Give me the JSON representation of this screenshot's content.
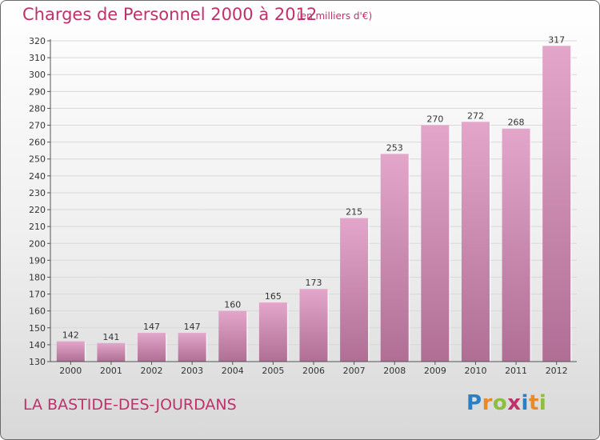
{
  "title": "Charges de Personnel 2000 à 2012",
  "subtitle": "(en milliers d'€)",
  "town": "LA BASTIDE-DES-JOURDANS",
  "logo": {
    "text": "Proxiti",
    "letters": [
      {
        "ch": "P",
        "color": "#2b7fc4"
      },
      {
        "ch": "r",
        "color": "#e8892a"
      },
      {
        "ch": "o",
        "color": "#8bbf3c"
      },
      {
        "ch": "x",
        "color": "#c0306a"
      },
      {
        "ch": "i",
        "color": "#2b7fc4"
      },
      {
        "ch": "t",
        "color": "#e8892a"
      },
      {
        "ch": "i",
        "color": "#8bbf3c"
      }
    ]
  },
  "colors": {
    "accent": "#c0306a",
    "bar_top": "#e3a6ca",
    "bar_bottom": "#b06e95",
    "axis": "#555555",
    "grid": "#d8d8d8"
  },
  "chart_data": {
    "type": "bar",
    "categories": [
      "2000",
      "2001",
      "2002",
      "2003",
      "2004",
      "2005",
      "2006",
      "2007",
      "2008",
      "2009",
      "2010",
      "2011",
      "2012"
    ],
    "values": [
      142,
      141,
      147,
      147,
      160,
      165,
      173,
      215,
      253,
      270,
      272,
      268,
      317
    ],
    "title": "Charges de Personnel 2000 à 2012",
    "subtitle": "(en milliers d'€)",
    "ylim": [
      130,
      320
    ],
    "yticks": [
      130,
      140,
      150,
      160,
      170,
      180,
      190,
      200,
      210,
      220,
      230,
      240,
      250,
      260,
      270,
      280,
      290,
      300,
      310,
      320
    ],
    "grid": true
  }
}
